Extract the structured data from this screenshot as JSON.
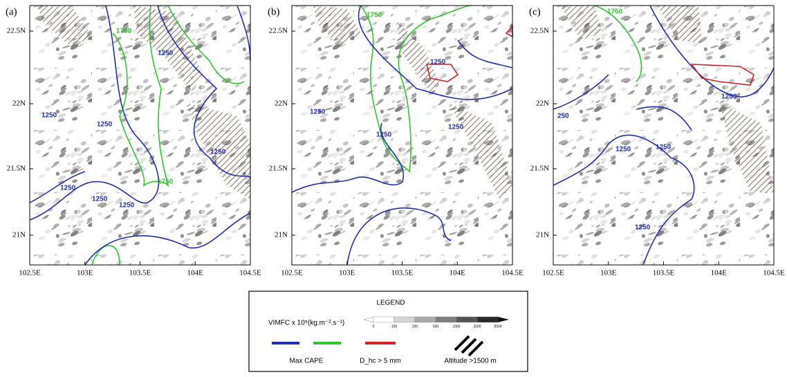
{
  "panels": [
    {
      "label": "(a)",
      "contour_labels": [
        "1750",
        "1250",
        "1250",
        "1250",
        "1250",
        "1750",
        "1250",
        "1250",
        "1250"
      ]
    },
    {
      "label": "(b)",
      "contour_labels": [
        "1750",
        "1250",
        "1250",
        "1250",
        "1250"
      ]
    },
    {
      "label": "(c)",
      "contour_labels": [
        "1750",
        "1250",
        "250",
        "1250",
        "1250",
        "1250"
      ]
    }
  ],
  "axes": {
    "yticks": [
      "22.5N",
      "22N",
      "21.5N",
      "21N"
    ],
    "xticks": [
      "102.5E",
      "103E",
      "103.5E",
      "104E",
      "104.5E"
    ]
  },
  "legend": {
    "title": "LEGEND",
    "vimfc_label": "VIMFC x 10⁵(kg.m⁻².s⁻¹)",
    "colorbar_ticks": [
      "0",
      "100",
      "200",
      "500",
      "1000",
      "2000",
      "5000"
    ],
    "cape_label": "Max CAPE",
    "dhc_label": "D_hc > 5 mm",
    "altitude_label": "Altitude >1500 m"
  }
}
